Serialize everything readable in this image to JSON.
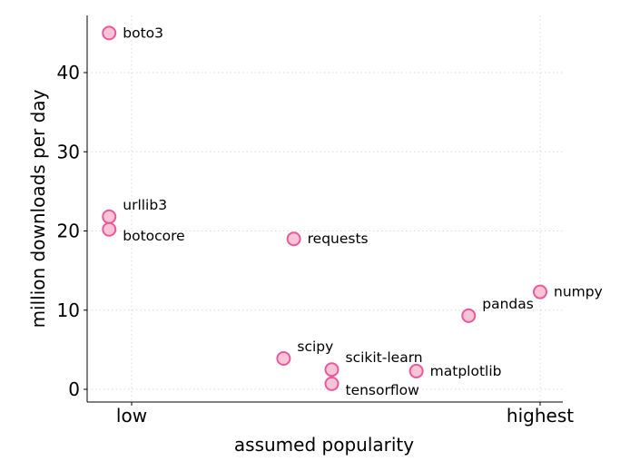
{
  "chart_data": {
    "type": "scatter",
    "title": "",
    "xlabel": "assumed popularity",
    "ylabel": "million downloads per day",
    "xlim": [
      -0.06,
      1.05
    ],
    "ylim": [
      -1.5,
      47.5
    ],
    "x_ticks": [
      {
        "value": 0,
        "label": "low"
      },
      {
        "value": 1,
        "label": "highest"
      }
    ],
    "y_ticks": [
      0,
      10,
      20,
      30,
      40
    ],
    "grid": true,
    "point_color": "#f9c4d6",
    "point_edge_color": "#e75a9b",
    "points": [
      {
        "name": "boto3",
        "x": -0.055,
        "y": 45.0,
        "label_pos": "right"
      },
      {
        "name": "urllib3",
        "x": -0.055,
        "y": 21.8,
        "label_pos": "upper-right"
      },
      {
        "name": "botocore",
        "x": -0.055,
        "y": 20.2,
        "label_pos": "lower-right"
      },
      {
        "name": "requests",
        "x": 0.397,
        "y": 19.0,
        "label_pos": "right"
      },
      {
        "name": "numpy",
        "x": 1.0,
        "y": 12.3,
        "label_pos": "right"
      },
      {
        "name": "pandas",
        "x": 0.825,
        "y": 9.3,
        "label_pos": "upper-right"
      },
      {
        "name": "scipy",
        "x": 0.372,
        "y": 3.9,
        "label_pos": "upper-right"
      },
      {
        "name": "scikit-learn",
        "x": 0.49,
        "y": 2.5,
        "label_pos": "upper-right"
      },
      {
        "name": "matplotlib",
        "x": 0.697,
        "y": 2.3,
        "label_pos": "right"
      },
      {
        "name": "tensorflow",
        "x": 0.49,
        "y": 0.7,
        "label_pos": "lower-right"
      }
    ]
  }
}
